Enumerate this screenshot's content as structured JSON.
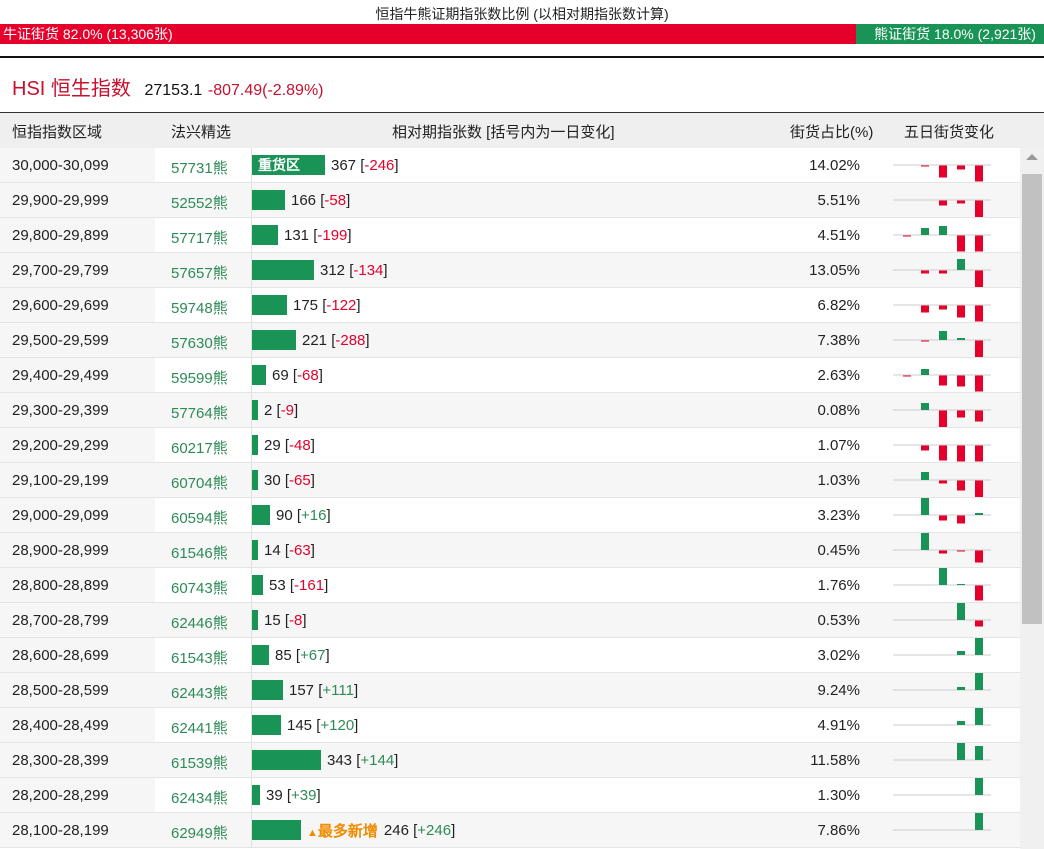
{
  "title": "恒指牛熊证期指张数比例 (以相对期指张数计算)",
  "ratio": {
    "bull_label": "牛证街货 82.0% (13,306张)",
    "bull_pct": 82.0,
    "bear_label": "熊证街货 18.0% (2,921张)",
    "bear_pct": 18.0
  },
  "index": {
    "name": "HSI 恒生指数",
    "last": "27153.1",
    "change": "-807.49(-2.89%)"
  },
  "headers": [
    "恒指指数区域",
    "法兴精选",
    "相对期指张数 [括号内为一日变化]",
    "街货占比(%)",
    "五日街货变化"
  ],
  "heavy_label": "重货区",
  "most_new_label": "最多新增",
  "colors": {
    "bull": "#e4002b",
    "bear": "#1a9456"
  },
  "rows": [
    {
      "range": "30,000-30,099",
      "pick": "57731熊",
      "count": 367,
      "change": "-246",
      "pct": "14.02%",
      "heavy": true,
      "five": [
        0,
        -1,
        -12,
        -4,
        -16
      ]
    },
    {
      "range": "29,900-29,999",
      "pick": "52552熊",
      "count": 166,
      "change": "-58",
      "pct": "5.51%",
      "five": [
        0,
        0,
        -5,
        -3,
        -18
      ]
    },
    {
      "range": "29,800-29,899",
      "pick": "57717熊",
      "count": 131,
      "change": "-199",
      "pct": "4.51%",
      "five": [
        -1,
        7,
        9,
        -16,
        -16
      ]
    },
    {
      "range": "29,700-29,799",
      "pick": "57657熊",
      "count": 312,
      "change": "-134",
      "pct": "13.05%",
      "five": [
        0,
        -3,
        -3,
        11,
        -18
      ]
    },
    {
      "range": "29,600-29,699",
      "pick": "59748熊",
      "count": 175,
      "change": "-122",
      "pct": "6.82%",
      "five": [
        0,
        -7,
        -4,
        -12,
        -16
      ]
    },
    {
      "range": "29,500-29,599",
      "pick": "57630熊",
      "count": 221,
      "change": "-288",
      "pct": "7.38%",
      "five": [
        0,
        -1,
        9,
        2,
        -18
      ]
    },
    {
      "range": "29,400-29,499",
      "pick": "59599熊",
      "count": 69,
      "change": "-68",
      "pct": "2.63%",
      "five": [
        -1,
        6,
        -10,
        -11,
        -16
      ]
    },
    {
      "range": "29,300-29,399",
      "pick": "57764熊",
      "count": 2,
      "change": "-9",
      "pct": "0.08%",
      "five": [
        0,
        7,
        -18,
        -7,
        -11
      ]
    },
    {
      "range": "29,200-29,299",
      "pick": "60217熊",
      "count": 29,
      "change": "-48",
      "pct": "1.07%",
      "five": [
        0,
        -5,
        -15,
        -16,
        -16
      ]
    },
    {
      "range": "29,100-29,199",
      "pick": "60704熊",
      "count": 30,
      "change": "-65",
      "pct": "1.03%",
      "five": [
        0,
        8,
        -3,
        -10,
        -18
      ]
    },
    {
      "range": "29,000-29,099",
      "pick": "60594熊",
      "count": 90,
      "change": "+16",
      "pct": "3.23%",
      "five": [
        0,
        18,
        -5,
        -8,
        2
      ]
    },
    {
      "range": "28,900-28,999",
      "pick": "61546熊",
      "count": 14,
      "change": "-63",
      "pct": "0.45%",
      "five": [
        0,
        18,
        -3,
        -1,
        -12
      ]
    },
    {
      "range": "28,800-28,899",
      "pick": "60743熊",
      "count": 53,
      "change": "-161",
      "pct": "1.76%",
      "five": [
        0,
        0,
        18,
        1,
        -15
      ]
    },
    {
      "range": "28,700-28,799",
      "pick": "62446熊",
      "count": 15,
      "change": "-8",
      "pct": "0.53%",
      "five": [
        0,
        0,
        0,
        18,
        -6
      ]
    },
    {
      "range": "28,600-28,699",
      "pick": "61543熊",
      "count": 85,
      "change": "+67",
      "pct": "3.02%",
      "five": [
        0,
        0,
        0,
        4,
        18
      ]
    },
    {
      "range": "28,500-28,599",
      "pick": "62443熊",
      "count": 157,
      "change": "+111",
      "pct": "9.24%",
      "five": [
        0,
        0,
        0,
        3,
        18
      ]
    },
    {
      "range": "28,400-28,499",
      "pick": "62441熊",
      "count": 145,
      "change": "+120",
      "pct": "4.91%",
      "five": [
        0,
        0,
        0,
        4,
        18
      ]
    },
    {
      "range": "28,300-28,399",
      "pick": "61539熊",
      "count": 343,
      "change": "+144",
      "pct": "11.58%",
      "five": [
        0,
        0,
        0,
        18,
        14
      ]
    },
    {
      "range": "28,200-28,299",
      "pick": "62434熊",
      "count": 39,
      "change": "+39",
      "pct": "1.30%",
      "five": [
        0,
        0,
        0,
        0,
        18
      ]
    },
    {
      "range": "28,100-28,199",
      "pick": "62949熊",
      "count": 246,
      "change": "+246",
      "pct": "7.86%",
      "most_new": true,
      "five": [
        0,
        0,
        0,
        0,
        18
      ]
    }
  ]
}
